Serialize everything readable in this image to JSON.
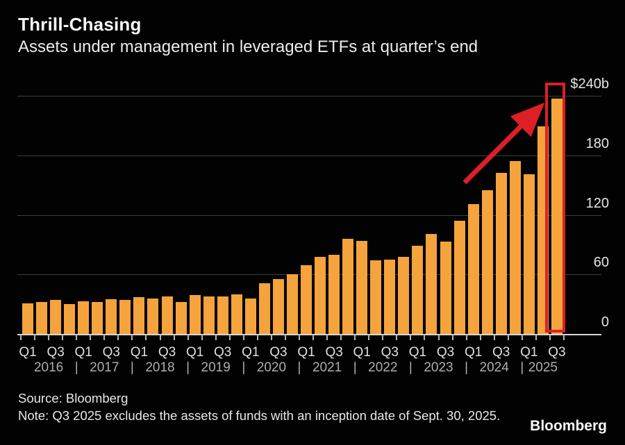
{
  "header": {
    "title": "Thrill-Chasing",
    "subtitle": "Assets under management in leveraged ETFs at quarter’s end"
  },
  "chart_data": {
    "type": "bar",
    "title": "Thrill-Chasing",
    "subtitle": "Assets under management in leveraged ETFs at quarter’s end",
    "unit": "USD billions",
    "x": [
      "Q1 2016",
      "Q2 2016",
      "Q3 2016",
      "Q4 2016",
      "Q1 2017",
      "Q2 2017",
      "Q3 2017",
      "Q4 2017",
      "Q1 2018",
      "Q2 2018",
      "Q3 2018",
      "Q4 2018",
      "Q1 2019",
      "Q2 2019",
      "Q3 2019",
      "Q4 2019",
      "Q1 2020",
      "Q2 2020",
      "Q3 2020",
      "Q4 2020",
      "Q1 2021",
      "Q2 2021",
      "Q3 2021",
      "Q4 2021",
      "Q1 2022",
      "Q2 2022",
      "Q3 2022",
      "Q4 2022",
      "Q1 2023",
      "Q2 2023",
      "Q3 2023",
      "Q4 2023",
      "Q1 2024",
      "Q2 2024",
      "Q3 2024",
      "Q4 2024",
      "Q1 2025",
      "Q2 2025",
      "Q3 2025"
    ],
    "series": [
      {
        "name": "Leveraged ETF assets under management ($b)",
        "values": [
          31,
          32,
          34,
          30,
          33,
          32,
          35,
          34,
          37,
          36,
          38,
          32,
          39,
          38,
          38,
          40,
          36,
          51,
          55,
          60,
          69,
          78,
          80,
          96,
          94,
          74,
          75,
          78,
          89,
          101,
          93,
          114,
          131,
          145,
          162,
          174,
          161,
          209,
          237
        ]
      }
    ],
    "ylim": [
      0,
      240
    ],
    "yticks": [
      {
        "value": 0,
        "label": "0"
      },
      {
        "value": 60,
        "label": "60"
      },
      {
        "value": 120,
        "label": "120"
      },
      {
        "value": 180,
        "label": "180"
      },
      {
        "value": 240,
        "label": "$240b"
      }
    ],
    "x_axis": {
      "quarter_tick_labels": [
        "Q1",
        "Q3"
      ],
      "year_separator": "|",
      "years": [
        {
          "label": "2016",
          "quarters": 4
        },
        {
          "label": "2017",
          "quarters": 4
        },
        {
          "label": "2018",
          "quarters": 4
        },
        {
          "label": "2019",
          "quarters": 4
        },
        {
          "label": "2020",
          "quarters": 4
        },
        {
          "label": "2021",
          "quarters": 4
        },
        {
          "label": "2022",
          "quarters": 4
        },
        {
          "label": "2023",
          "quarters": 4
        },
        {
          "label": "2024",
          "quarters": 4
        },
        {
          "label": "2025",
          "quarters": 3
        }
      ]
    },
    "grid": "horizontal",
    "legend": "none",
    "annotations": {
      "highlight_box": {
        "target": "Q3 2025",
        "color": "#dc2026"
      },
      "arrow": {
        "color": "#dc2026",
        "direction": "up-right"
      }
    }
  },
  "colors": {
    "background": "#020202",
    "bar": "#f5a33c",
    "highlight": "#dc2026",
    "gridline": "#3f3f3f",
    "baseline": "#d8d8d8",
    "axis_text": "#e6e6e6",
    "year_text": "#aeaeae",
    "text": "#f7f7f7"
  },
  "footer": {
    "source": "Source: Bloomberg",
    "note": "Note: Q3 2025 excludes the assets of funds with an inception date of Sept. 30, 2025.",
    "brand": "Bloomberg"
  }
}
